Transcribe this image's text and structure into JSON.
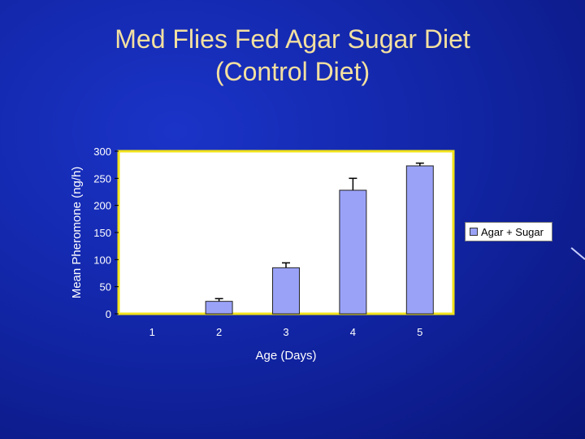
{
  "slide": {
    "title_line1": "Med Flies Fed Agar Sugar Diet",
    "title_line2": "(Control Diet)"
  },
  "chart_data": {
    "type": "bar",
    "categories": [
      "1",
      "2",
      "3",
      "4",
      "5"
    ],
    "series": [
      {
        "name": "Agar + Sugar",
        "values": [
          0,
          23,
          85,
          228,
          273
        ],
        "error": [
          0,
          5,
          9,
          22,
          5
        ]
      }
    ],
    "xlabel": "Age (Days)",
    "ylabel": "Mean Pheromone (ng/h)",
    "ylim": [
      0,
      300
    ],
    "yticks": [
      0,
      50,
      100,
      150,
      200,
      250,
      300
    ],
    "yticklabels": [
      "0",
      "50",
      "100",
      "150",
      "200",
      "250",
      "300"
    ],
    "grid": false,
    "legend_position": "right",
    "colors": {
      "bar": "#9aa2f8",
      "plot_border": "#f2e21a",
      "plot_fill": "#ffffff"
    }
  }
}
